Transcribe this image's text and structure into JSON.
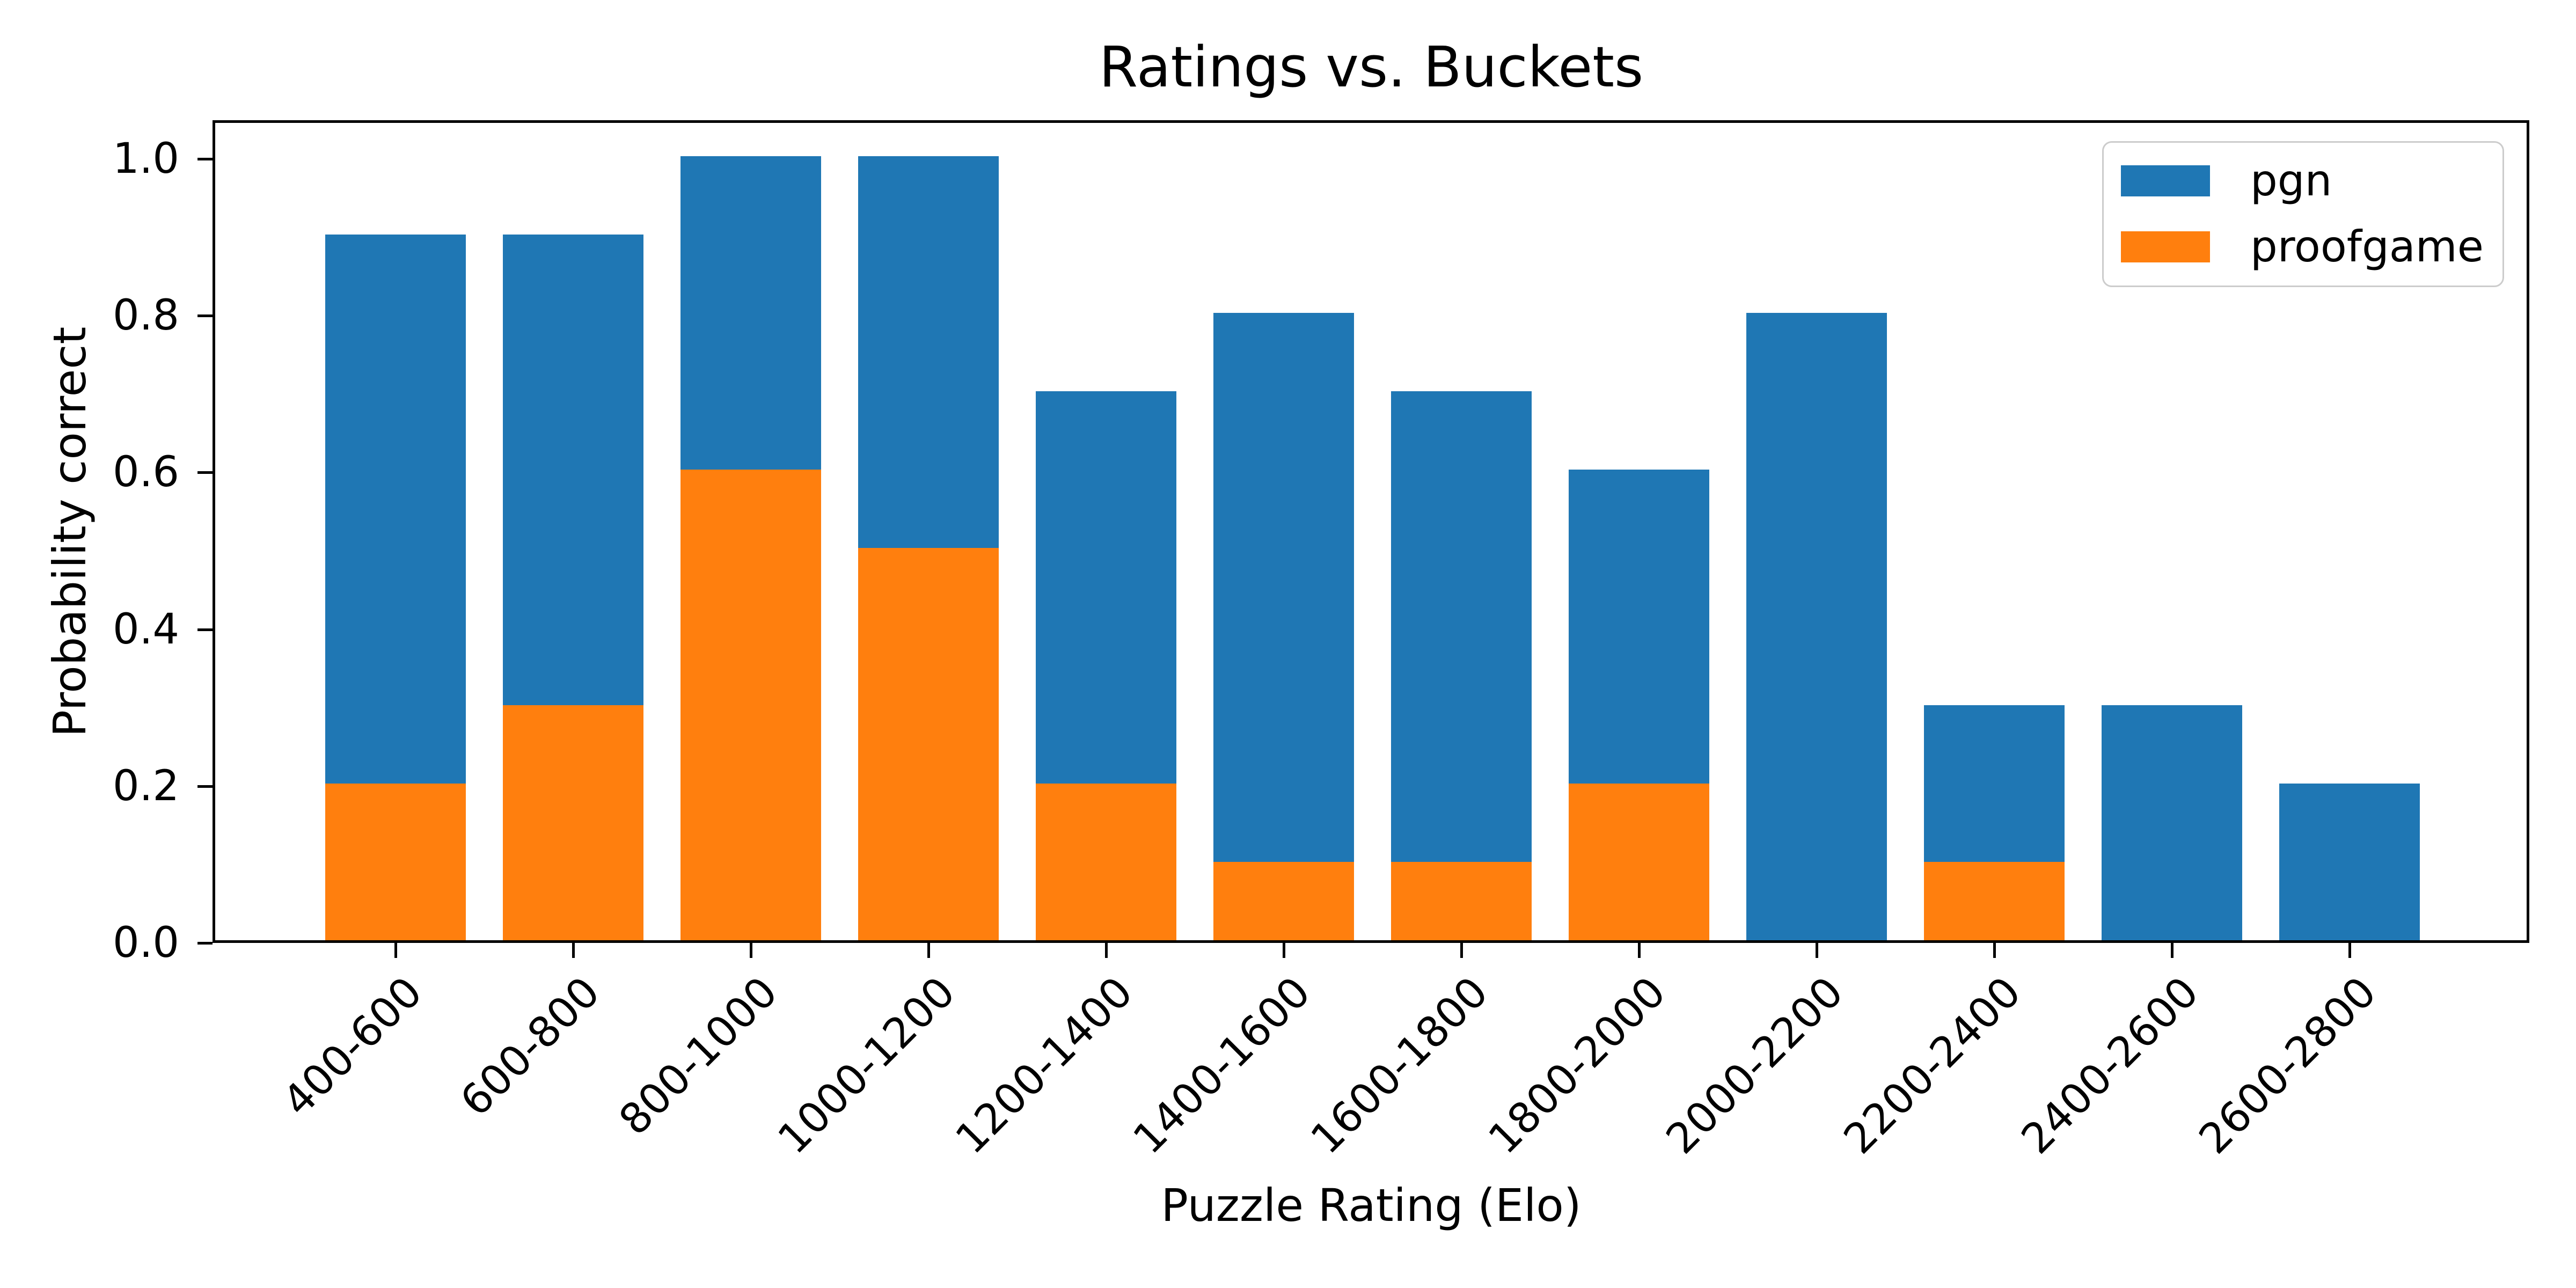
{
  "chart_data": {
    "type": "bar",
    "mode": "overlay",
    "title": "Ratings vs. Buckets",
    "xlabel": "Puzzle Rating (Elo)",
    "ylabel": "Probability correct",
    "categories": [
      "400-600",
      "600-800",
      "800-1000",
      "1000-1200",
      "1200-1400",
      "1400-1600",
      "1600-1800",
      "1800-2000",
      "2000-2200",
      "2200-2400",
      "2400-2600",
      "2600-2800"
    ],
    "series": [
      {
        "name": "pgn",
        "color": "#1f77b4",
        "values": [
          0.9,
          0.9,
          1.0,
          1.0,
          0.7,
          0.8,
          0.7,
          0.6,
          0.8,
          0.3,
          0.3,
          0.2
        ]
      },
      {
        "name": "proofgame",
        "color": "#ff7f0e",
        "values": [
          0.2,
          0.3,
          0.6,
          0.5,
          0.2,
          0.1,
          0.1,
          0.2,
          0.0,
          0.1,
          0.0,
          0.0
        ]
      }
    ],
    "yticks": [
      "0.0",
      "0.2",
      "0.4",
      "0.6",
      "0.8",
      "1.0"
    ],
    "ylim": [
      0,
      1.05
    ],
    "xlim_padding_slots": 1.0,
    "bar_width_fraction": 0.8,
    "grid": false,
    "legend": {
      "position": "upper right",
      "entries": [
        "pgn",
        "proofgame"
      ]
    },
    "spine_color": "#000000",
    "background_color": "#ffffff"
  }
}
